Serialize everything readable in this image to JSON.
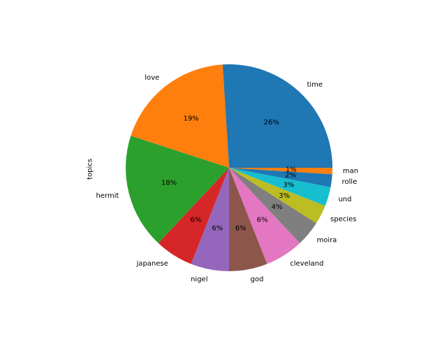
{
  "chart_data": {
    "type": "pie",
    "ylabel": "topics",
    "categories": [
      "time",
      "love",
      "hermit",
      "japanese",
      "nigel",
      "god",
      "cleveland",
      "moira",
      "species",
      "und",
      "rolle",
      "man"
    ],
    "values": [
      26,
      19,
      18,
      6,
      6,
      6,
      6,
      4,
      3,
      3,
      2,
      1
    ],
    "pct_labels": [
      "26%",
      "19%",
      "18%",
      "6%",
      "6%",
      "6%",
      "6%",
      "4%",
      "3%",
      "3%",
      "2%",
      "1%"
    ],
    "colors": [
      "#1f77b4",
      "#ff7f0e",
      "#2ca02c",
      "#d62728",
      "#9467bd",
      "#8c564b",
      "#e377c2",
      "#7f7f7f",
      "#bcbd22",
      "#17becf",
      "#1f77b4",
      "#ff7f0e"
    ],
    "start_angle_deg": 0,
    "direction": "counterclockwise"
  }
}
